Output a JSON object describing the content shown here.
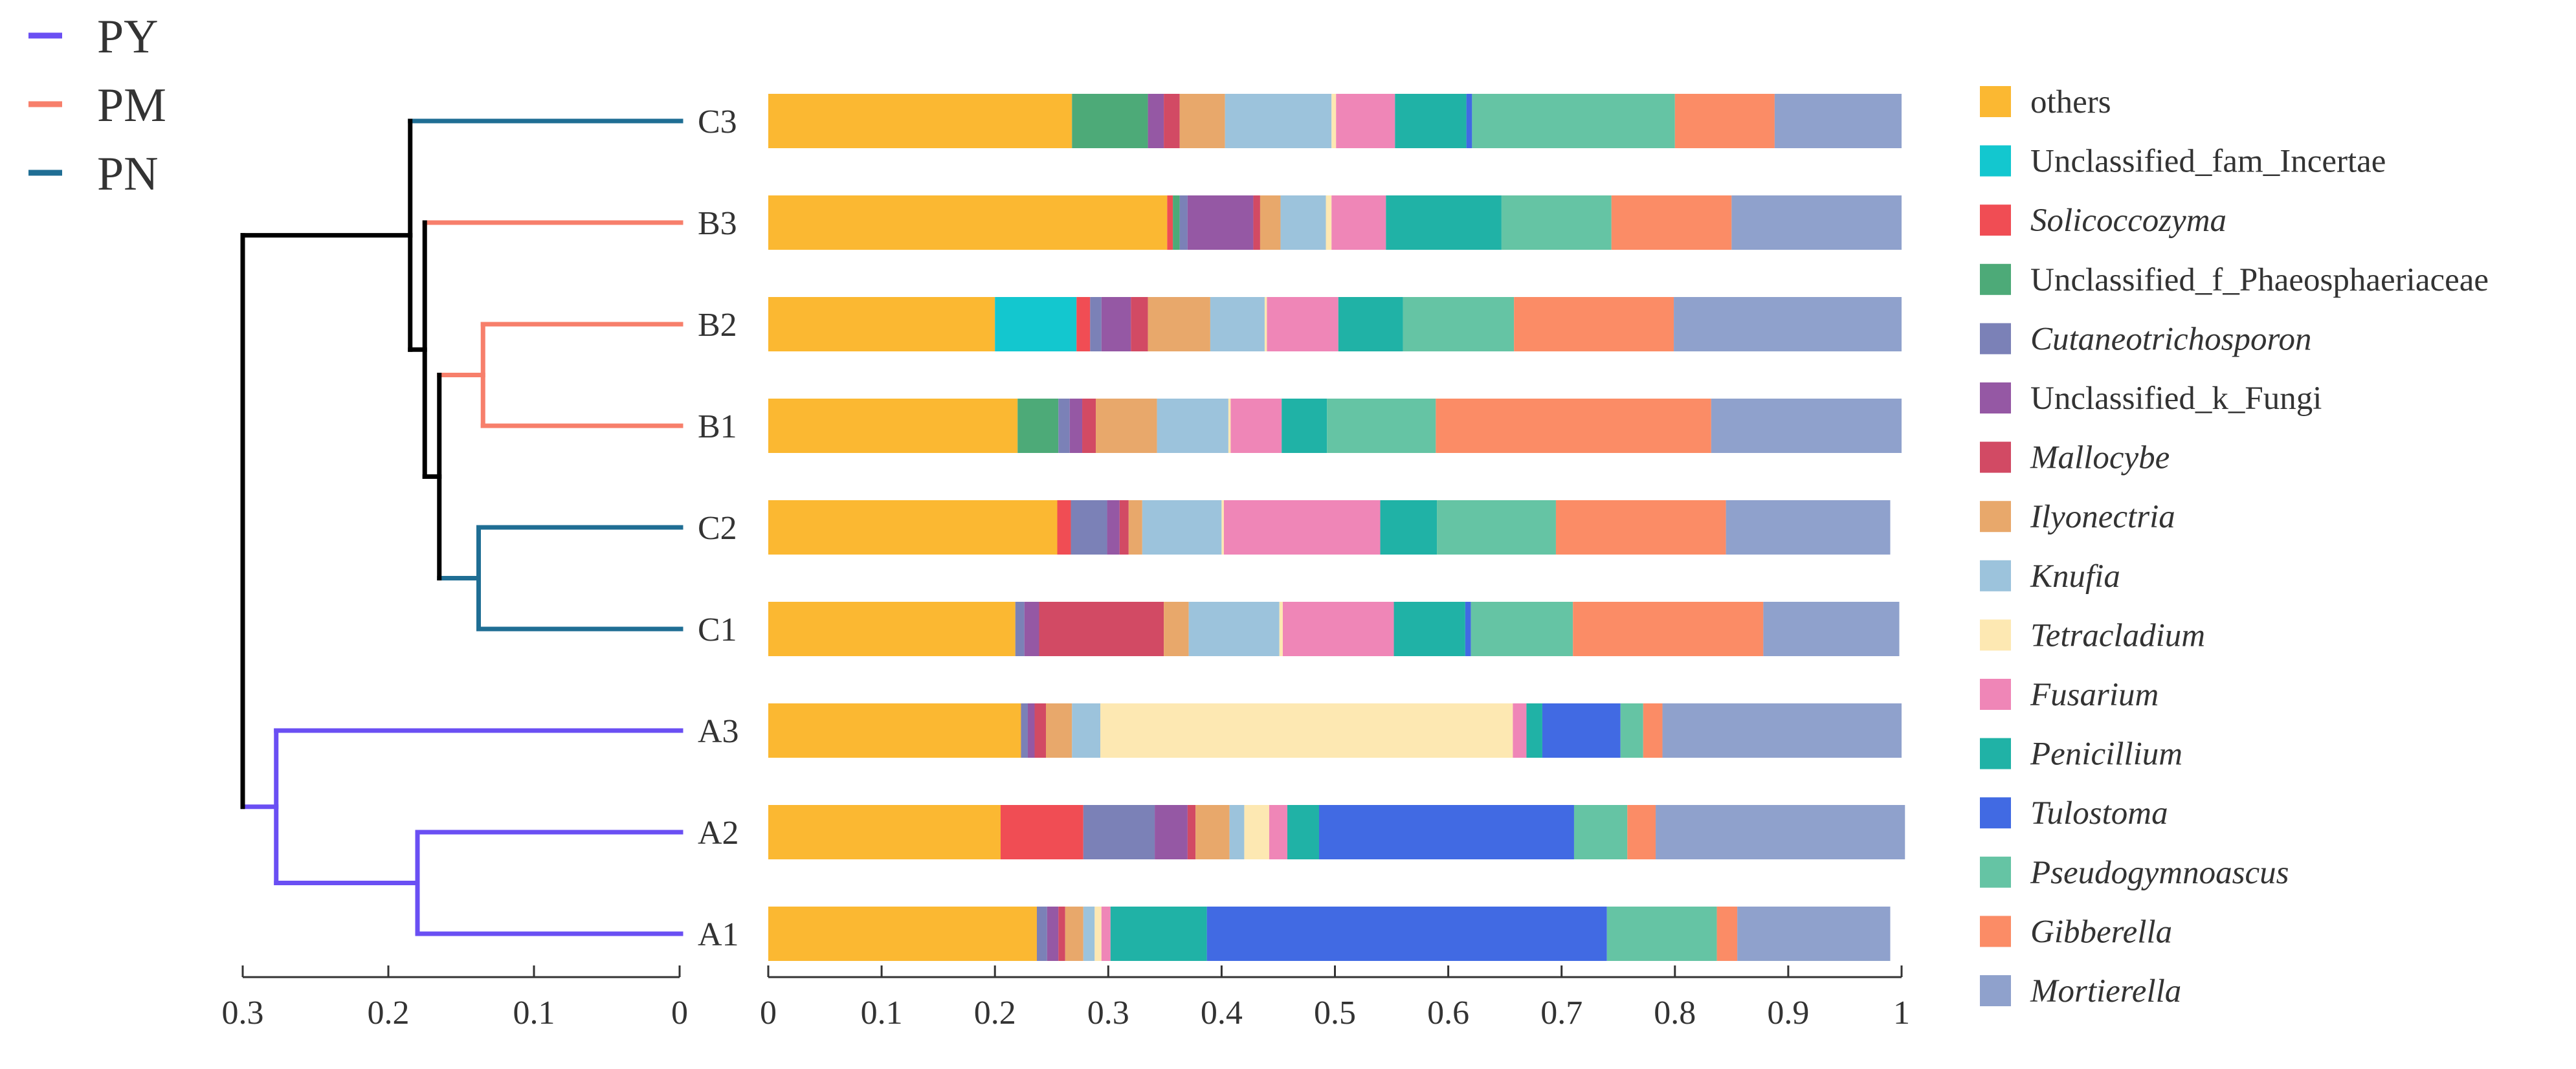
{
  "chart_data": [
    {
      "type": "dendrogram",
      "x_ticks": [
        0.3,
        0.2,
        0.1,
        0
      ],
      "x_range": [
        0.3,
        0
      ],
      "leaf_order": [
        "C3",
        "B3",
        "B2",
        "B1",
        "C2",
        "C1",
        "A3",
        "A2",
        "A1"
      ],
      "leaf_group": {
        "C3": "PN",
        "B3": "PM",
        "B2": "PM",
        "B1": "PM",
        "C2": "PN",
        "C1": "PN",
        "A3": "PY",
        "A2": "PY",
        "A1": "PY"
      },
      "nodes": [
        {
          "id": "B2B1",
          "left": "B2",
          "right": "B1",
          "height": 0.135
        },
        {
          "id": "C2C1",
          "left": "C2",
          "right": "C1",
          "height": 0.138
        },
        {
          "id": "M1",
          "left": "B2B1",
          "right": "C2C1",
          "height": 0.165
        },
        {
          "id": "M2",
          "left": "B3",
          "right": "M1",
          "height": 0.175
        },
        {
          "id": "M3",
          "left": "C3",
          "right": "M2",
          "height": 0.185
        },
        {
          "id": "A2A1",
          "left": "A2",
          "right": "A1",
          "height": 0.18
        },
        {
          "id": "A",
          "left": "A3",
          "right": "A2A1",
          "height": 0.277
        },
        {
          "id": "root",
          "left": "M3",
          "right": "A",
          "height": 0.3
        }
      ],
      "legend": [
        {
          "name": "PY",
          "color": "#6a4ff3"
        },
        {
          "name": "PM",
          "color": "#f77f6b"
        },
        {
          "name": "PN",
          "color": "#1f6e94"
        }
      ]
    },
    {
      "type": "stacked-bar-horizontal",
      "x_ticks": [
        0,
        0.1,
        0.2,
        0.3,
        0.4,
        0.5,
        0.6,
        0.7,
        0.8,
        0.9,
        1
      ],
      "x_range": [
        0,
        1
      ],
      "categories": [
        "C3",
        "B3",
        "B2",
        "B1",
        "C2",
        "C1",
        "A3",
        "A2",
        "A1"
      ],
      "series": [
        {
          "name": "others",
          "italic": false,
          "color": "#fbb832",
          "values": [
            0.268,
            0.352,
            0.2,
            0.22,
            0.255,
            0.218,
            0.223,
            0.205,
            0.237
          ]
        },
        {
          "name": "Unclassified_fam_Incertae",
          "italic": false,
          "color": "#13c7cf",
          "values": [
            0,
            0,
            0.072,
            0,
            0,
            0,
            0,
            0,
            0
          ]
        },
        {
          "name": "Solicoccozyma",
          "italic": true,
          "color": "#f04d54",
          "values": [
            0,
            0.005,
            0.012,
            0,
            0.012,
            0,
            0,
            0.073,
            0
          ]
        },
        {
          "name": "Unclassified_f_Phaeosphaeriaceae",
          "italic": false,
          "color": "#4daa78",
          "values": [
            0.067,
            0.006,
            0,
            0.036,
            0,
            0,
            0,
            0,
            0
          ]
        },
        {
          "name": "Cutaneotrichosporon",
          "italic": true,
          "color": "#7b81b7",
          "values": [
            0,
            0.007,
            0.01,
            0.01,
            0.032,
            0.008,
            0.006,
            0.063,
            0.009
          ]
        },
        {
          "name": "Unclassified_k_Fungi",
          "italic": false,
          "color": "#9558a4",
          "values": [
            0.014,
            0.058,
            0.026,
            0.011,
            0.011,
            0.013,
            0.006,
            0.029,
            0.01
          ]
        },
        {
          "name": "Mallocybe",
          "italic": true,
          "color": "#d24a64",
          "values": [
            0.014,
            0.006,
            0.015,
            0.012,
            0.008,
            0.11,
            0.01,
            0.007,
            0.006
          ]
        },
        {
          "name": "Ilyonectria",
          "italic": true,
          "color": "#e8a86b",
          "values": [
            0.04,
            0.018,
            0.055,
            0.054,
            0.012,
            0.022,
            0.023,
            0.03,
            0.016
          ]
        },
        {
          "name": "Knufia",
          "italic": true,
          "color": "#9cc3dc",
          "values": [
            0.094,
            0.04,
            0.048,
            0.063,
            0.07,
            0.08,
            0.025,
            0.013,
            0.01
          ]
        },
        {
          "name": "Tetracladium",
          "italic": true,
          "color": "#fde8b2",
          "values": [
            0.004,
            0.005,
            0.002,
            0.002,
            0.002,
            0.003,
            0.364,
            0.022,
            0.006
          ]
        },
        {
          "name": "Fusarium",
          "italic": true,
          "color": "#ef86b7",
          "values": [
            0.052,
            0.048,
            0.063,
            0.045,
            0.138,
            0.098,
            0.012,
            0.016,
            0.008
          ]
        },
        {
          "name": "Penicillium",
          "italic": true,
          "color": "#20b2a6",
          "values": [
            0.063,
            0.102,
            0.057,
            0.04,
            0.05,
            0.063,
            0.014,
            0.028,
            0.085
          ]
        },
        {
          "name": "Tulostoma",
          "italic": true,
          "color": "#416ae3",
          "values": [
            0.005,
            0,
            0,
            0,
            0,
            0.005,
            0.069,
            0.225,
            0.353
          ]
        },
        {
          "name": "Pseudogymnoascus",
          "italic": true,
          "color": "#65c4a4",
          "values": [
            0.179,
            0.097,
            0.098,
            0.096,
            0.105,
            0.09,
            0.02,
            0.047,
            0.097
          ]
        },
        {
          "name": "Gibberella",
          "italic": true,
          "color": "#fb8c66",
          "values": [
            0.088,
            0.106,
            0.141,
            0.243,
            0.15,
            0.168,
            0.017,
            0.025,
            0.018
          ]
        },
        {
          "name": "Mortierella",
          "italic": true,
          "color": "#8fa1cc",
          "values": [
            0.112,
            0.15,
            0.201,
            0.168,
            0.145,
            0.12,
            0.211,
            0.22,
            0.135
          ]
        }
      ]
    }
  ]
}
